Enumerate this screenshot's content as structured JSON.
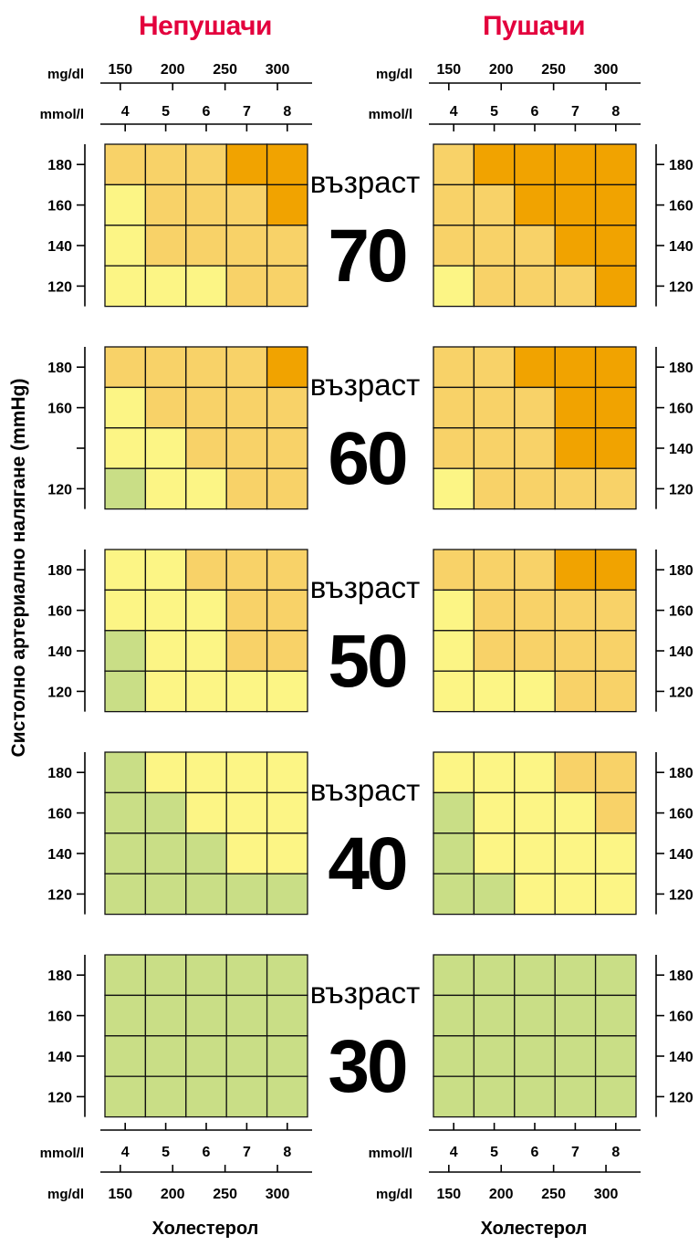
{
  "colors": {
    "level1": "#c9de86",
    "level2": "#fcf585",
    "level3": "#f8d268",
    "level4": "#f1a300",
    "title": "#e3003d",
    "grid": "#111111"
  },
  "chart_data": {
    "type": "heatmap",
    "groups": [
      {
        "title": "Непушачи"
      },
      {
        "title": "Пушачи"
      }
    ],
    "x_units_top": [
      "mg/dl",
      "mmol/l"
    ],
    "x_units_bottom": [
      "mmol/l",
      "mg/dl"
    ],
    "x_mmol_ticks": [
      "4",
      "5",
      "6",
      "7",
      "8"
    ],
    "x_mgdl_ticks": [
      "150",
      "200",
      "250",
      "300"
    ],
    "y_ticks": [
      "180",
      "160",
      "140",
      "120"
    ],
    "y_label": "Систолно артериално налягане (mmHg)",
    "x_label": "Холестерол",
    "age_word": "възраст",
    "panels": [
      {
        "age": "70",
        "y_ticks_left": [
          "180",
          "160",
          "140",
          "120"
        ],
        "y_ticks_right": [
          "180",
          "160",
          "140",
          "120"
        ],
        "nonsmokers": [
          [
            3,
            3,
            3,
            4,
            4
          ],
          [
            2,
            3,
            3,
            3,
            4
          ],
          [
            2,
            3,
            3,
            3,
            3
          ],
          [
            2,
            2,
            2,
            3,
            3
          ]
        ],
        "smokers": [
          [
            3,
            4,
            4,
            4,
            4
          ],
          [
            3,
            3,
            4,
            4,
            4
          ],
          [
            3,
            3,
            3,
            4,
            4
          ],
          [
            2,
            3,
            3,
            3,
            4
          ]
        ]
      },
      {
        "age": "60",
        "y_ticks_left": [
          "180",
          "160",
          "",
          "120"
        ],
        "y_ticks_right": [
          "180",
          "160",
          "140",
          "120"
        ],
        "nonsmokers": [
          [
            3,
            3,
            3,
            3,
            4
          ],
          [
            2,
            3,
            3,
            3,
            3
          ],
          [
            2,
            2,
            3,
            3,
            3
          ],
          [
            1,
            2,
            2,
            3,
            3
          ]
        ],
        "smokers": [
          [
            3,
            3,
            4,
            4,
            4
          ],
          [
            3,
            3,
            3,
            4,
            4
          ],
          [
            3,
            3,
            3,
            4,
            4
          ],
          [
            2,
            3,
            3,
            3,
            3
          ]
        ]
      },
      {
        "age": "50",
        "y_ticks_left": [
          "180",
          "160",
          "140",
          "120"
        ],
        "y_ticks_right": [
          "180",
          "160",
          "140",
          "120"
        ],
        "nonsmokers": [
          [
            2,
            2,
            3,
            3,
            3
          ],
          [
            2,
            2,
            2,
            3,
            3
          ],
          [
            1,
            2,
            2,
            3,
            3
          ],
          [
            1,
            2,
            2,
            2,
            2
          ]
        ],
        "smokers": [
          [
            3,
            3,
            3,
            4,
            4
          ],
          [
            2,
            3,
            3,
            3,
            3
          ],
          [
            2,
            3,
            3,
            3,
            3
          ],
          [
            2,
            2,
            2,
            3,
            3
          ]
        ]
      },
      {
        "age": "40",
        "y_ticks_left": [
          "180",
          "160",
          "140",
          "120"
        ],
        "y_ticks_right": [
          "180",
          "160",
          "140",
          "120"
        ],
        "nonsmokers": [
          [
            1,
            2,
            2,
            2,
            2
          ],
          [
            1,
            1,
            2,
            2,
            2
          ],
          [
            1,
            1,
            1,
            2,
            2
          ],
          [
            1,
            1,
            1,
            1,
            1
          ]
        ],
        "smokers": [
          [
            2,
            2,
            2,
            3,
            3
          ],
          [
            1,
            2,
            2,
            2,
            3
          ],
          [
            1,
            2,
            2,
            2,
            2
          ],
          [
            1,
            1,
            2,
            2,
            2
          ]
        ]
      },
      {
        "age": "30",
        "y_ticks_left": [
          "180",
          "160",
          "140",
          "120"
        ],
        "y_ticks_right": [
          "180",
          "160",
          "140",
          "120"
        ],
        "nonsmokers": [
          [
            1,
            1,
            1,
            1,
            1
          ],
          [
            1,
            1,
            1,
            1,
            1
          ],
          [
            1,
            1,
            1,
            1,
            1
          ],
          [
            1,
            1,
            1,
            1,
            1
          ]
        ],
        "smokers": [
          [
            1,
            1,
            1,
            1,
            1
          ],
          [
            1,
            1,
            1,
            1,
            1
          ],
          [
            1,
            1,
            1,
            1,
            1
          ],
          [
            1,
            1,
            1,
            1,
            1
          ]
        ]
      }
    ]
  }
}
